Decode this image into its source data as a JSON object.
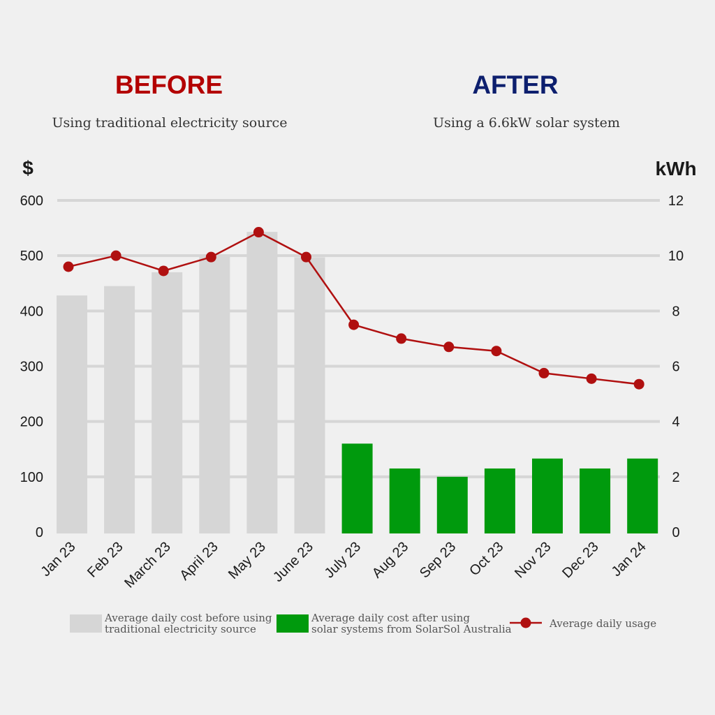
{
  "header": {
    "before_title": "BEFORE",
    "before_subtitle": "Using traditional electricity source",
    "after_title": "AFTER",
    "after_subtitle": "Using a 6.6kW solar system"
  },
  "colors": {
    "before_title": "#b30000",
    "after_title": "#0d1f6e",
    "before_bar": "#d6d6d6",
    "after_bar": "#009a0d",
    "usage_line": "#b01010",
    "grid": "#d6d6d6",
    "text": "#1a1a1a",
    "legend_text": "#555555",
    "background": "#f0f0f0"
  },
  "chart_data": {
    "type": "bar",
    "categories": [
      "Jan 23",
      "Feb 23",
      "March 23",
      "April 23",
      "May 23",
      "June 23",
      "July 23",
      "Aug 23",
      "Sep 23",
      "Oct 23",
      "Nov 23",
      "Dec 23",
      "Jan 24"
    ],
    "y_left_label": "$",
    "y_right_label": "kWh",
    "y_left_range": [
      0,
      600
    ],
    "y_left_ticks": [
      "0",
      "100",
      "200",
      "300",
      "400",
      "500",
      "600"
    ],
    "y_right_range": [
      0,
      12
    ],
    "y_right_ticks": [
      "0",
      "2",
      "4",
      "6",
      "8",
      "10",
      "12"
    ],
    "grid": true,
    "legend_position": "bottom",
    "series": [
      {
        "name": "Average daily cost before using traditional electricity source",
        "kind": "bar",
        "axis": "left",
        "values": [
          428,
          445,
          470,
          502,
          543,
          497,
          null,
          null,
          null,
          null,
          null,
          null,
          null
        ]
      },
      {
        "name": "Average daily cost after using solar systems from SolarSol Australia",
        "kind": "bar",
        "axis": "left",
        "values": [
          null,
          null,
          null,
          null,
          null,
          null,
          160,
          115,
          100,
          115,
          133,
          115,
          133
        ]
      },
      {
        "name": "Average daily usage",
        "kind": "line",
        "axis": "right",
        "values": [
          9.6,
          10.0,
          9.45,
          9.95,
          10.85,
          9.95,
          7.5,
          7.0,
          6.7,
          6.55,
          5.75,
          5.55,
          5.35
        ]
      }
    ],
    "legend": [
      {
        "line1": "Average daily cost before using",
        "line2": "traditional electricity source"
      },
      {
        "line1": "Average daily cost after using",
        "line2": "solar systems from SolarSol Australia"
      },
      {
        "line1": "Average daily usage",
        "line2": ""
      }
    ]
  }
}
